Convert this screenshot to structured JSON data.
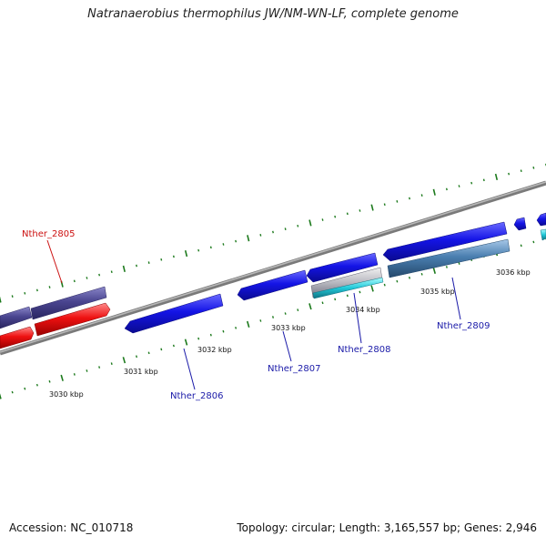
{
  "title": "Natranaerobius thermophilus JW/NM-WN-LF, complete genome",
  "footer": {
    "accession": "Accession: NC_010718",
    "stats": "Topology: circular; Length: 3,165,557 bp; Genes: 2,946"
  },
  "colors": {
    "backbone": "#8c8c8c",
    "forward_gene": "#1414e6",
    "dark_gene": "#4a4590",
    "red_gene": "#ee1111",
    "steel_gene": "#4a7fb0",
    "cyan_gene": "#20c8d8",
    "tick_green": "#1d7a1d",
    "label_blue": "#1a1aa8",
    "label_red": "#cc1111"
  },
  "kbp_labels": [
    "3030 kbp",
    "3031 kbp",
    "3032 kbp",
    "3033 kbp",
    "3034 kbp",
    "3035 kbp",
    "3036 kbp"
  ],
  "gene_labels": {
    "g2805": "Nther_2805",
    "g2806": "Nther_2806",
    "g2807": "Nther_2807",
    "g2808": "Nther_2808",
    "g2809": "Nther_2809"
  }
}
